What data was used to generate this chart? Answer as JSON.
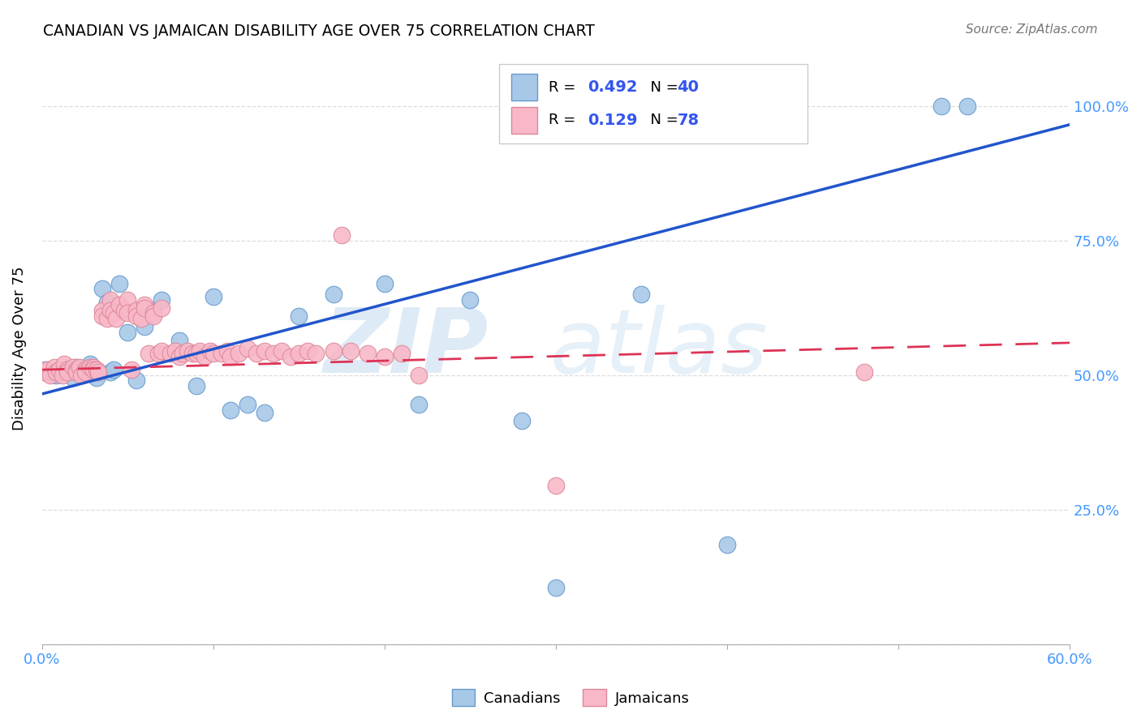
{
  "title": "CANADIAN VS JAMAICAN DISABILITY AGE OVER 75 CORRELATION CHART",
  "source": "Source: ZipAtlas.com",
  "ylabel": "Disability Age Over 75",
  "canadian_color": "#a8c8e8",
  "canadian_edge_color": "#6699cc",
  "jamaican_color": "#f8b8c8",
  "jamaican_edge_color": "#dd8899",
  "trendline_canadian_color": "#2255cc",
  "trendline_jamaican_color": "#dd3355",
  "watermark_color": "#c8dff0",
  "legend_box_color": "#dddddd",
  "grid_color": "#dddddd",
  "tick_color": "#4499ff",
  "canadians_x": [
    0.002,
    0.005,
    0.008,
    0.01,
    0.012,
    0.015,
    0.018,
    0.02,
    0.022,
    0.025,
    0.028,
    0.03,
    0.032,
    0.035,
    0.038,
    0.04,
    0.042,
    0.045,
    0.05,
    0.055,
    0.06,
    0.065,
    0.07,
    0.08,
    0.09,
    0.1,
    0.11,
    0.12,
    0.13,
    0.15,
    0.17,
    0.2,
    0.22,
    0.25,
    0.28,
    0.3,
    0.35,
    0.4,
    0.525,
    0.54
  ],
  "canadians_y": [
    0.51,
    0.505,
    0.5,
    0.51,
    0.508,
    0.512,
    0.495,
    0.515,
    0.505,
    0.51,
    0.52,
    0.505,
    0.495,
    0.66,
    0.635,
    0.505,
    0.51,
    0.67,
    0.58,
    0.49,
    0.59,
    0.62,
    0.64,
    0.565,
    0.48,
    0.645,
    0.435,
    0.445,
    0.43,
    0.61,
    0.65,
    0.67,
    0.445,
    0.64,
    0.415,
    0.105,
    0.65,
    0.185,
    1.0,
    1.0
  ],
  "jamaicans_x": [
    0.001,
    0.003,
    0.005,
    0.007,
    0.008,
    0.01,
    0.012,
    0.013,
    0.015,
    0.015,
    0.018,
    0.02,
    0.02,
    0.022,
    0.023,
    0.025,
    0.025,
    0.028,
    0.03,
    0.03,
    0.032,
    0.033,
    0.035,
    0.035,
    0.038,
    0.04,
    0.04,
    0.042,
    0.043,
    0.045,
    0.048,
    0.05,
    0.05,
    0.052,
    0.055,
    0.055,
    0.058,
    0.06,
    0.06,
    0.062,
    0.065,
    0.065,
    0.068,
    0.07,
    0.07,
    0.075,
    0.078,
    0.08,
    0.082,
    0.085,
    0.088,
    0.09,
    0.092,
    0.095,
    0.098,
    0.1,
    0.105,
    0.108,
    0.11,
    0.115,
    0.12,
    0.125,
    0.13,
    0.135,
    0.14,
    0.145,
    0.15,
    0.155,
    0.16,
    0.17,
    0.175,
    0.18,
    0.19,
    0.2,
    0.21,
    0.22,
    0.3,
    0.48
  ],
  "jamaicans_y": [
    0.505,
    0.51,
    0.5,
    0.515,
    0.505,
    0.51,
    0.5,
    0.52,
    0.51,
    0.505,
    0.515,
    0.51,
    0.505,
    0.515,
    0.5,
    0.51,
    0.505,
    0.515,
    0.515,
    0.51,
    0.51,
    0.505,
    0.62,
    0.61,
    0.605,
    0.64,
    0.62,
    0.615,
    0.605,
    0.63,
    0.62,
    0.64,
    0.615,
    0.51,
    0.62,
    0.61,
    0.605,
    0.63,
    0.625,
    0.54,
    0.615,
    0.61,
    0.54,
    0.625,
    0.545,
    0.54,
    0.545,
    0.535,
    0.54,
    0.545,
    0.54,
    0.54,
    0.545,
    0.535,
    0.545,
    0.54,
    0.54,
    0.545,
    0.535,
    0.54,
    0.55,
    0.54,
    0.545,
    0.54,
    0.545,
    0.535,
    0.54,
    0.545,
    0.54,
    0.545,
    0.76,
    0.545,
    0.54,
    0.535,
    0.54,
    0.5,
    0.295,
    0.505
  ],
  "can_trend_x": [
    0.0,
    0.6
  ],
  "can_trend_y": [
    0.465,
    0.965
  ],
  "jam_trend_x": [
    0.0,
    0.6
  ],
  "jam_trend_y": [
    0.51,
    0.56
  ],
  "xmin": 0.0,
  "xmax": 0.6,
  "ymin": 0.0,
  "ymax": 1.1,
  "xticks": [
    0.0,
    0.1,
    0.2,
    0.3,
    0.4,
    0.5,
    0.6
  ],
  "yticks": [
    0.0,
    0.25,
    0.5,
    0.75,
    1.0
  ],
  "ytick_labels_right": [
    "",
    "25.0%",
    "50.0%",
    "75.0%",
    "100.0%"
  ],
  "xtick_labels": [
    "0.0%",
    "",
    "",
    "",
    "",
    "",
    "60.0%"
  ]
}
